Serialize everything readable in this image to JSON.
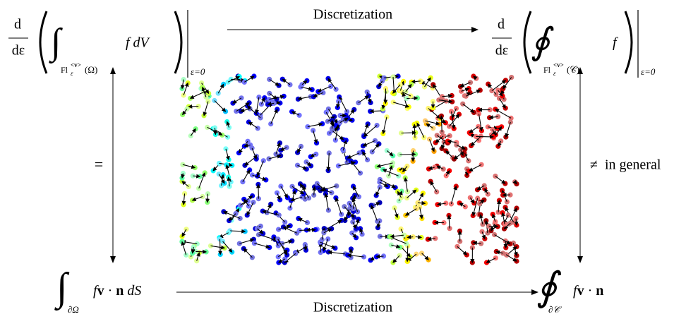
{
  "top_left": {
    "numerator": "d",
    "denominator": "dε",
    "integral": "∫",
    "domain": "Fl",
    "domain_sub": "ε",
    "domain_sup": "<v>",
    "domain_arg": "(Ω)",
    "integrand": "f dV",
    "evaluation": "ε=0"
  },
  "top_right": {
    "numerator": "d",
    "denominator": "dε",
    "integral": "∮",
    "domain": "Fl",
    "domain_sub": "ε",
    "domain_sup": "<v>",
    "domain_arg": "(𝒞)",
    "integrand": "f",
    "evaluation": "ε=0"
  },
  "bottom_left": {
    "integral": "∫",
    "domain": "∂Ω",
    "integrand": [
      "f",
      "v",
      " · ",
      "n",
      " dS"
    ]
  },
  "bottom_right": {
    "integral": "∮",
    "domain": "∂𝒞",
    "integrand": [
      "f",
      "v",
      " · ",
      "n"
    ]
  },
  "edges": {
    "top": "Discretization",
    "bottom": "Discretization",
    "left": "=",
    "right": "≠  in general"
  }
}
